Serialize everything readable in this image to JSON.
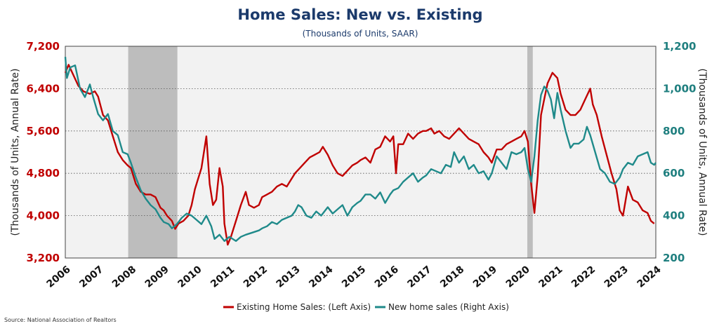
{
  "chart_data": {
    "type": "line",
    "title": "Home Sales: New vs. Existing",
    "subtitle": "(Thousands of Units, SAAR)",
    "ylabel_left": "(Thousands of Units, Annual Rate)",
    "ylabel_right": "(Thousands of Units, Annual Rate)",
    "x_ticks": [
      "2006",
      "2007",
      "2008",
      "2009",
      "2010",
      "2011",
      "2012",
      "2013",
      "2014",
      "2015",
      "2016",
      "2017",
      "2018",
      "2019",
      "2020",
      "2021",
      "2022",
      "2023",
      "2024"
    ],
    "ylim_left": [
      3200,
      7200
    ],
    "yticks_left": [
      "7,200",
      "6,400",
      "5,600",
      "4,800",
      "4,000",
      "3,200"
    ],
    "ylim_right": [
      200,
      1200
    ],
    "yticks_right": [
      "1,200",
      "1,000",
      "800",
      "600",
      "400",
      "200"
    ],
    "grid": "horizontal-dotted",
    "legend_position": "bottom-center",
    "source": "Source: National Association of Realtors",
    "recessions": [
      {
        "start": 2007.917,
        "end": 2009.417
      },
      {
        "start": 2020.083,
        "end": 2020.25
      }
    ],
    "series": [
      {
        "name": "Existing Home Sales: (Left Axis)",
        "axis": "left",
        "color": "#c00000",
        "points": [
          [
            2006.0,
            6700
          ],
          [
            2006.1,
            6850
          ],
          [
            2006.25,
            6650
          ],
          [
            2006.4,
            6450
          ],
          [
            2006.55,
            6350
          ],
          [
            2006.75,
            6300
          ],
          [
            2006.9,
            6350
          ],
          [
            2007.0,
            6250
          ],
          [
            2007.15,
            5900
          ],
          [
            2007.3,
            5800
          ],
          [
            2007.45,
            5500
          ],
          [
            2007.6,
            5200
          ],
          [
            2007.75,
            5050
          ],
          [
            2007.9,
            4950
          ],
          [
            2008.0,
            4900
          ],
          [
            2008.15,
            4600
          ],
          [
            2008.3,
            4450
          ],
          [
            2008.45,
            4400
          ],
          [
            2008.6,
            4400
          ],
          [
            2008.75,
            4350
          ],
          [
            2008.9,
            4150
          ],
          [
            2009.0,
            4100
          ],
          [
            2009.1,
            4000
          ],
          [
            2009.25,
            3900
          ],
          [
            2009.35,
            3750
          ],
          [
            2009.45,
            3850
          ],
          [
            2009.6,
            3900
          ],
          [
            2009.75,
            4000
          ],
          [
            2009.85,
            4200
          ],
          [
            2009.95,
            4500
          ],
          [
            2010.05,
            4700
          ],
          [
            2010.15,
            4900
          ],
          [
            2010.25,
            5300
          ],
          [
            2010.3,
            5500
          ],
          [
            2010.4,
            4600
          ],
          [
            2010.5,
            4200
          ],
          [
            2010.6,
            4300
          ],
          [
            2010.7,
            4900
          ],
          [
            2010.8,
            4550
          ],
          [
            2010.85,
            3850
          ],
          [
            2010.95,
            3450
          ],
          [
            2011.05,
            3600
          ],
          [
            2011.2,
            3900
          ],
          [
            2011.35,
            4200
          ],
          [
            2011.5,
            4450
          ],
          [
            2011.6,
            4200
          ],
          [
            2011.75,
            4150
          ],
          [
            2011.9,
            4200
          ],
          [
            2012.0,
            4350
          ],
          [
            2012.15,
            4400
          ],
          [
            2012.3,
            4450
          ],
          [
            2012.45,
            4550
          ],
          [
            2012.6,
            4600
          ],
          [
            2012.75,
            4550
          ],
          [
            2012.9,
            4700
          ],
          [
            2013.0,
            4800
          ],
          [
            2013.15,
            4900
          ],
          [
            2013.3,
            5000
          ],
          [
            2013.45,
            5100
          ],
          [
            2013.6,
            5150
          ],
          [
            2013.75,
            5200
          ],
          [
            2013.85,
            5300
          ],
          [
            2014.0,
            5150
          ],
          [
            2014.15,
            4950
          ],
          [
            2014.3,
            4800
          ],
          [
            2014.45,
            4750
          ],
          [
            2014.6,
            4850
          ],
          [
            2014.75,
            4950
          ],
          [
            2014.9,
            5000
          ],
          [
            2015.0,
            5050
          ],
          [
            2015.15,
            5100
          ],
          [
            2015.3,
            5000
          ],
          [
            2015.45,
            5250
          ],
          [
            2015.6,
            5300
          ],
          [
            2015.75,
            5500
          ],
          [
            2015.9,
            5400
          ],
          [
            2016.0,
            5500
          ],
          [
            2016.08,
            4800
          ],
          [
            2016.15,
            5350
          ],
          [
            2016.3,
            5350
          ],
          [
            2016.45,
            5550
          ],
          [
            2016.6,
            5450
          ],
          [
            2016.75,
            5550
          ],
          [
            2016.9,
            5600
          ],
          [
            2017.0,
            5600
          ],
          [
            2017.15,
            5650
          ],
          [
            2017.25,
            5550
          ],
          [
            2017.4,
            5600
          ],
          [
            2017.55,
            5500
          ],
          [
            2017.7,
            5450
          ],
          [
            2017.85,
            5550
          ],
          [
            2018.0,
            5650
          ],
          [
            2018.15,
            5550
          ],
          [
            2018.3,
            5450
          ],
          [
            2018.45,
            5400
          ],
          [
            2018.6,
            5350
          ],
          [
            2018.75,
            5200
          ],
          [
            2018.9,
            5100
          ],
          [
            2019.0,
            5000
          ],
          [
            2019.15,
            5250
          ],
          [
            2019.3,
            5250
          ],
          [
            2019.45,
            5350
          ],
          [
            2019.6,
            5400
          ],
          [
            2019.75,
            5450
          ],
          [
            2019.9,
            5500
          ],
          [
            2020.0,
            5600
          ],
          [
            2020.1,
            5400
          ],
          [
            2020.2,
            4600
          ],
          [
            2020.3,
            4050
          ],
          [
            2020.4,
            4750
          ],
          [
            2020.5,
            5900
          ],
          [
            2020.6,
            6200
          ],
          [
            2020.7,
            6500
          ],
          [
            2020.85,
            6700
          ],
          [
            2021.0,
            6600
          ],
          [
            2021.1,
            6300
          ],
          [
            2021.25,
            6000
          ],
          [
            2021.4,
            5900
          ],
          [
            2021.55,
            5900
          ],
          [
            2021.7,
            6000
          ],
          [
            2021.85,
            6200
          ],
          [
            2022.0,
            6400
          ],
          [
            2022.08,
            6100
          ],
          [
            2022.2,
            5900
          ],
          [
            2022.35,
            5500
          ],
          [
            2022.5,
            5150
          ],
          [
            2022.65,
            4800
          ],
          [
            2022.8,
            4500
          ],
          [
            2022.9,
            4100
          ],
          [
            2023.0,
            4000
          ],
          [
            2023.15,
            4550
          ],
          [
            2023.3,
            4300
          ],
          [
            2023.45,
            4250
          ],
          [
            2023.6,
            4100
          ],
          [
            2023.75,
            4050
          ],
          [
            2023.85,
            3900
          ],
          [
            2023.95,
            3850
          ]
        ]
      },
      {
        "name": "New home sales (Right Axis)",
        "axis": "right",
        "color": "#1f8a8a",
        "points": [
          [
            2006.0,
            1150
          ],
          [
            2006.05,
            1050
          ],
          [
            2006.15,
            1100
          ],
          [
            2006.3,
            1110
          ],
          [
            2006.45,
            1000
          ],
          [
            2006.6,
            960
          ],
          [
            2006.75,
            1020
          ],
          [
            2006.85,
            960
          ],
          [
            2007.0,
            880
          ],
          [
            2007.15,
            850
          ],
          [
            2007.3,
            880
          ],
          [
            2007.45,
            800
          ],
          [
            2007.6,
            780
          ],
          [
            2007.75,
            700
          ],
          [
            2007.9,
            690
          ],
          [
            2008.0,
            650
          ],
          [
            2008.15,
            580
          ],
          [
            2008.3,
            520
          ],
          [
            2008.45,
            480
          ],
          [
            2008.6,
            450
          ],
          [
            2008.75,
            430
          ],
          [
            2008.9,
            390
          ],
          [
            2009.0,
            370
          ],
          [
            2009.15,
            360
          ],
          [
            2009.25,
            340
          ],
          [
            2009.4,
            360
          ],
          [
            2009.55,
            390
          ],
          [
            2009.7,
            410
          ],
          [
            2009.85,
            400
          ],
          [
            2010.0,
            380
          ],
          [
            2010.15,
            360
          ],
          [
            2010.3,
            400
          ],
          [
            2010.45,
            350
          ],
          [
            2010.55,
            290
          ],
          [
            2010.7,
            310
          ],
          [
            2010.85,
            280
          ],
          [
            2011.0,
            300
          ],
          [
            2011.2,
            280
          ],
          [
            2011.35,
            300
          ],
          [
            2011.5,
            310
          ],
          [
            2011.7,
            320
          ],
          [
            2011.9,
            330
          ],
          [
            2012.0,
            340
          ],
          [
            2012.15,
            350
          ],
          [
            2012.3,
            370
          ],
          [
            2012.45,
            360
          ],
          [
            2012.6,
            380
          ],
          [
            2012.75,
            390
          ],
          [
            2012.9,
            400
          ],
          [
            2013.0,
            420
          ],
          [
            2013.1,
            450
          ],
          [
            2013.2,
            440
          ],
          [
            2013.35,
            400
          ],
          [
            2013.5,
            390
          ],
          [
            2013.65,
            420
          ],
          [
            2013.8,
            400
          ],
          [
            2014.0,
            440
          ],
          [
            2014.15,
            410
          ],
          [
            2014.3,
            430
          ],
          [
            2014.45,
            450
          ],
          [
            2014.6,
            400
          ],
          [
            2014.75,
            440
          ],
          [
            2014.9,
            460
          ],
          [
            2015.0,
            470
          ],
          [
            2015.15,
            500
          ],
          [
            2015.3,
            500
          ],
          [
            2015.45,
            480
          ],
          [
            2015.6,
            510
          ],
          [
            2015.75,
            460
          ],
          [
            2015.9,
            500
          ],
          [
            2016.0,
            520
          ],
          [
            2016.15,
            530
          ],
          [
            2016.3,
            560
          ],
          [
            2016.45,
            580
          ],
          [
            2016.6,
            600
          ],
          [
            2016.75,
            560
          ],
          [
            2016.9,
            580
          ],
          [
            2017.0,
            590
          ],
          [
            2017.15,
            620
          ],
          [
            2017.3,
            610
          ],
          [
            2017.45,
            600
          ],
          [
            2017.6,
            640
          ],
          [
            2017.75,
            630
          ],
          [
            2017.85,
            700
          ],
          [
            2018.0,
            650
          ],
          [
            2018.15,
            680
          ],
          [
            2018.3,
            620
          ],
          [
            2018.45,
            640
          ],
          [
            2018.6,
            600
          ],
          [
            2018.75,
            610
          ],
          [
            2018.9,
            570
          ],
          [
            2019.0,
            600
          ],
          [
            2019.15,
            680
          ],
          [
            2019.3,
            650
          ],
          [
            2019.45,
            620
          ],
          [
            2019.6,
            700
          ],
          [
            2019.75,
            690
          ],
          [
            2019.9,
            700
          ],
          [
            2020.0,
            720
          ],
          [
            2020.1,
            620
          ],
          [
            2020.2,
            560
          ],
          [
            2020.3,
            680
          ],
          [
            2020.4,
            850
          ],
          [
            2020.5,
            970
          ],
          [
            2020.6,
            1010
          ],
          [
            2020.7,
            990
          ],
          [
            2020.8,
            950
          ],
          [
            2020.9,
            860
          ],
          [
            2021.0,
            980
          ],
          [
            2021.1,
            900
          ],
          [
            2021.25,
            800
          ],
          [
            2021.4,
            720
          ],
          [
            2021.5,
            740
          ],
          [
            2021.65,
            740
          ],
          [
            2021.8,
            760
          ],
          [
            2021.9,
            820
          ],
          [
            2022.0,
            780
          ],
          [
            2022.15,
            700
          ],
          [
            2022.3,
            620
          ],
          [
            2022.45,
            600
          ],
          [
            2022.6,
            560
          ],
          [
            2022.75,
            550
          ],
          [
            2022.9,
            580
          ],
          [
            2023.0,
            620
          ],
          [
            2023.15,
            650
          ],
          [
            2023.3,
            640
          ],
          [
            2023.45,
            680
          ],
          [
            2023.6,
            690
          ],
          [
            2023.75,
            700
          ],
          [
            2023.85,
            650
          ],
          [
            2023.95,
            640
          ],
          [
            2024.0,
            650
          ]
        ]
      }
    ]
  }
}
